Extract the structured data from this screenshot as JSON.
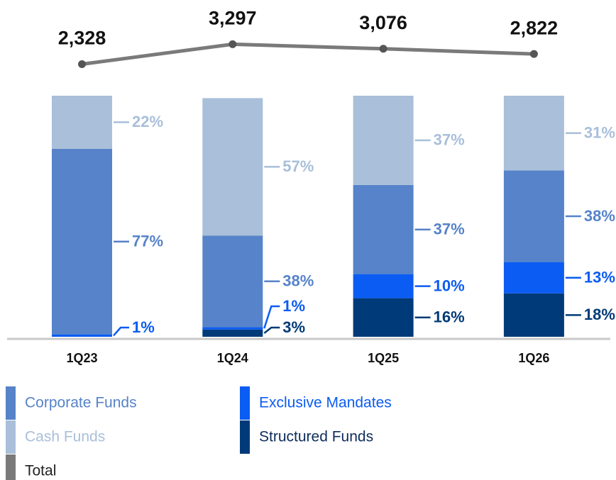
{
  "chart_data": {
    "type": "bar",
    "stacked": true,
    "categories": [
      "1Q23",
      "1Q24",
      "1Q25",
      "1Q26"
    ],
    "ylim": [
      0,
      100
    ],
    "y2lim": [
      0,
      4000
    ],
    "series": [
      {
        "name": "Structured Funds",
        "color": "#003a78",
        "values": [
          null,
          3,
          16,
          18
        ],
        "value_labels": [
          null,
          "3%",
          "16%",
          "18%"
        ]
      },
      {
        "name": "Exclusive Mandates",
        "color": "#0b5cf2",
        "values": [
          1,
          1,
          10,
          13
        ],
        "value_labels": [
          "1%",
          "1%",
          "10%",
          "13%"
        ]
      },
      {
        "name": "Corporate Funds",
        "color": "#5683c9",
        "values": [
          77,
          38,
          37,
          38
        ],
        "value_labels": [
          "77%",
          "38%",
          "37%",
          "38%"
        ]
      },
      {
        "name": "Cash Funds",
        "color": "#a9bfda",
        "values": [
          22,
          57,
          37,
          31
        ],
        "value_labels": [
          "22%",
          "57%",
          "37%",
          "31%"
        ]
      },
      {
        "name": "Total",
        "color": "#7a7a7a",
        "type": "line",
        "axis": "y2",
        "values": [
          2328,
          3297,
          3076,
          2822
        ],
        "value_labels": [
          "2,328",
          "3,297",
          "3,076",
          "2,822"
        ]
      }
    ]
  }
}
